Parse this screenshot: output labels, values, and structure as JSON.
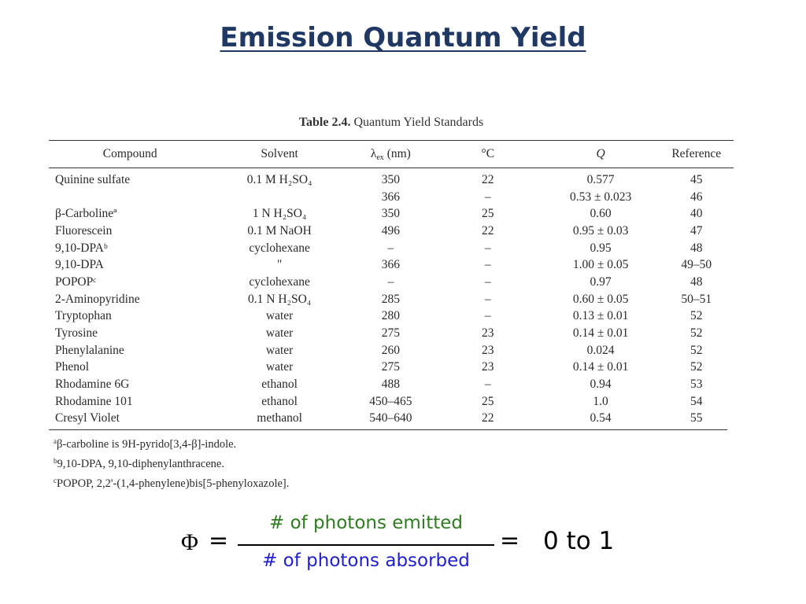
{
  "slide": {
    "title": "Emission Quantum Yield"
  },
  "table": {
    "caption_label": "Table 2.4.",
    "caption_text": "Quantum Yield Standards",
    "headers": {
      "compound": "Compound",
      "solvent": "Solvent",
      "lambda_symbol": "λ",
      "lambda_sub": "ex",
      "lambda_unit": "(nm)",
      "temp": "°C",
      "q": "Q",
      "reference": "Reference"
    },
    "rows": [
      {
        "compound": "Quinine sulfate",
        "solvent": "0.1 M H₂SO₄",
        "lambda": "350",
        "temp": "22",
        "q": "0.577",
        "ref": "45"
      },
      {
        "compound": "",
        "solvent": "",
        "lambda": "366",
        "temp": "–",
        "q": "0.53 ± 0.023",
        "ref": "46"
      },
      {
        "compound": "β-Carbolineª",
        "solvent": "1 N H₂SO₄",
        "lambda": "350",
        "temp": "25",
        "q": "0.60",
        "ref": "40"
      },
      {
        "compound": "Fluorescein",
        "solvent": "0.1 M NaOH",
        "lambda": "496",
        "temp": "22",
        "q": "0.95 ± 0.03",
        "ref": "47"
      },
      {
        "compound": "9,10-DPAᵇ",
        "solvent": "cyclohexane",
        "lambda": "–",
        "temp": "–",
        "q": "0.95",
        "ref": "48"
      },
      {
        "compound": "9,10-DPA",
        "solvent": "\"",
        "lambda": "366",
        "temp": "–",
        "q": "1.00 ± 0.05",
        "ref": "49–50"
      },
      {
        "compound": "POPOPᶜ",
        "solvent": "cyclohexane",
        "lambda": "–",
        "temp": "–",
        "q": "0.97",
        "ref": "48"
      },
      {
        "compound": "2-Aminopyridine",
        "solvent": "0.1 N H₂SO₄",
        "lambda": "285",
        "temp": "–",
        "q": "0.60 ± 0.05",
        "ref": "50–51"
      },
      {
        "compound": "Tryptophan",
        "solvent": "water",
        "lambda": "280",
        "temp": "–",
        "q": "0.13 ± 0.01",
        "ref": "52"
      },
      {
        "compound": "Tyrosine",
        "solvent": "water",
        "lambda": "275",
        "temp": "23",
        "q": "0.14 ± 0.01",
        "ref": "52"
      },
      {
        "compound": "Phenylalanine",
        "solvent": "water",
        "lambda": "260",
        "temp": "23",
        "q": "0.024",
        "ref": "52"
      },
      {
        "compound": "Phenol",
        "solvent": "water",
        "lambda": "275",
        "temp": "23",
        "q": "0.14 ± 0.01",
        "ref": "52"
      },
      {
        "compound": "Rhodamine 6G",
        "solvent": "ethanol",
        "lambda": "488",
        "temp": "–",
        "q": "0.94",
        "ref": "53"
      },
      {
        "compound": "Rhodamine 101",
        "solvent": "ethanol",
        "lambda": "450–465",
        "temp": "25",
        "q": "1.0",
        "ref": "54"
      },
      {
        "compound": "Cresyl Violet",
        "solvent": "methanol",
        "lambda": "540–640",
        "temp": "22",
        "q": "0.54",
        "ref": "55"
      }
    ],
    "footnotes": [
      {
        "mark": "a",
        "text": "β-carboline is 9H-pyrido[3,4-β]-indole."
      },
      {
        "mark": "b",
        "text": "9,10-DPA, 9,10-diphenylanthracene."
      },
      {
        "mark": "c",
        "text": "POPOP, 2,2'-(1,4-phenylene)bis[5-phenyloxazole]."
      }
    ]
  },
  "equation": {
    "phi": "Φ",
    "equals": "=",
    "numerator": "# of photons emitted",
    "denominator": "# of photons absorbed",
    "equals2": "=",
    "result": "0 to 1",
    "colors": {
      "numerator": "#2e7d1e",
      "denominator": "#1f1fd0"
    }
  },
  "colors": {
    "title": "#1f3864"
  }
}
